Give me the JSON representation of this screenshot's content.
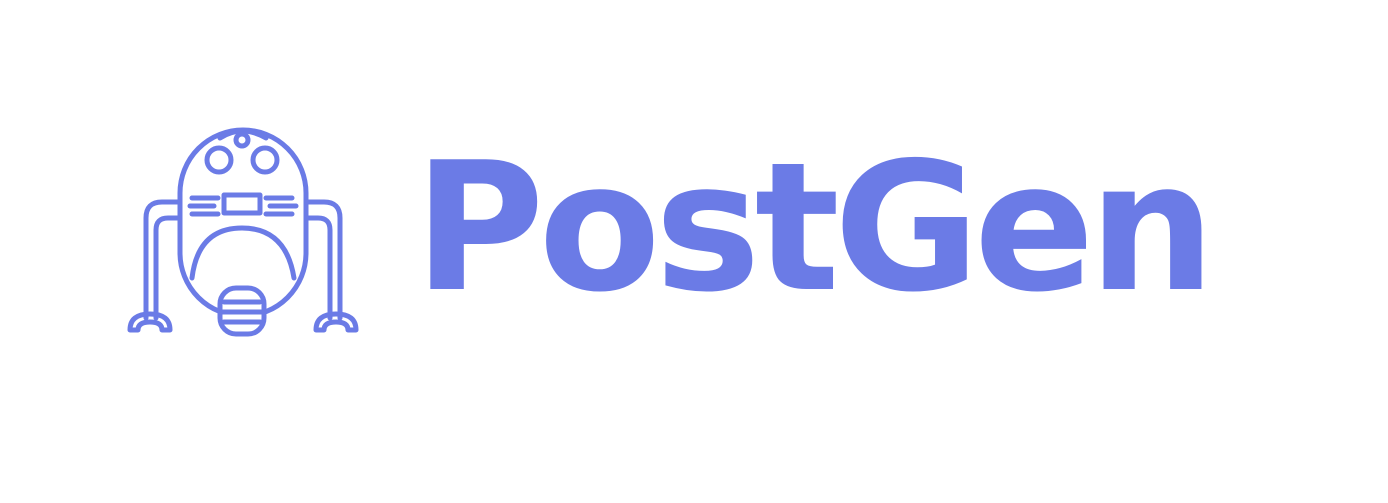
{
  "brand": {
    "name": "PostGen",
    "color": "#6b7be6",
    "logo_icon": "robot-icon"
  }
}
